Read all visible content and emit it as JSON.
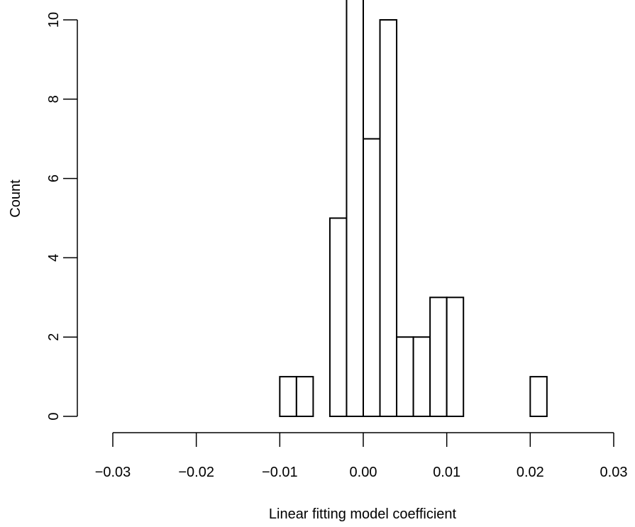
{
  "chart_data": {
    "type": "bar",
    "subtype": "histogram",
    "title": "",
    "xlabel": "Linear fitting model coefficient",
    "ylabel": "Count",
    "xlim": [
      -0.03,
      0.03
    ],
    "ylim": [
      0,
      10
    ],
    "x_ticks": [
      -0.03,
      -0.02,
      -0.01,
      0.0,
      0.01,
      0.02,
      0.03
    ],
    "x_tick_labels": [
      "−0.03",
      "−0.02",
      "−0.01",
      "0.00",
      "0.01",
      "0.02",
      "0.03"
    ],
    "y_ticks": [
      0,
      2,
      4,
      6,
      8,
      10
    ],
    "y_tick_labels": [
      "0",
      "2",
      "4",
      "6",
      "8",
      "10"
    ],
    "bin_width": 0.002,
    "bins": [
      {
        "x0": -0.032,
        "x1": -0.03,
        "count": 0
      },
      {
        "x0": -0.03,
        "x1": -0.028,
        "count": 0
      },
      {
        "x0": -0.028,
        "x1": -0.026,
        "count": 0
      },
      {
        "x0": -0.026,
        "x1": -0.024,
        "count": 0
      },
      {
        "x0": -0.024,
        "x1": -0.022,
        "count": 0
      },
      {
        "x0": -0.022,
        "x1": -0.02,
        "count": 0
      },
      {
        "x0": -0.02,
        "x1": -0.018,
        "count": 0
      },
      {
        "x0": -0.018,
        "x1": -0.016,
        "count": 0
      },
      {
        "x0": -0.016,
        "x1": -0.014,
        "count": 0
      },
      {
        "x0": -0.014,
        "x1": -0.012,
        "count": 0
      },
      {
        "x0": -0.012,
        "x1": -0.01,
        "count": 0
      },
      {
        "x0": -0.01,
        "x1": -0.008,
        "count": 1
      },
      {
        "x0": -0.008,
        "x1": -0.006,
        "count": 1
      },
      {
        "x0": -0.006,
        "x1": -0.004,
        "count": 0
      },
      {
        "x0": -0.004,
        "x1": -0.002,
        "count": 5
      },
      {
        "x0": -0.002,
        "x1": 0.0,
        "count": 11
      },
      {
        "x0": 0.0,
        "x1": 0.002,
        "count": 7
      },
      {
        "x0": 0.002,
        "x1": 0.004,
        "count": 10
      },
      {
        "x0": 0.004,
        "x1": 0.006,
        "count": 2
      },
      {
        "x0": 0.006,
        "x1": 0.008,
        "count": 2
      },
      {
        "x0": 0.008,
        "x1": 0.01,
        "count": 3
      },
      {
        "x0": 0.01,
        "x1": 0.012,
        "count": 3
      },
      {
        "x0": 0.012,
        "x1": 0.014,
        "count": 0
      },
      {
        "x0": 0.014,
        "x1": 0.016,
        "count": 0
      },
      {
        "x0": 0.016,
        "x1": 0.018,
        "count": 0
      },
      {
        "x0": 0.018,
        "x1": 0.02,
        "count": 0
      },
      {
        "x0": 0.02,
        "x1": 0.022,
        "count": 1
      },
      {
        "x0": 0.022,
        "x1": 0.024,
        "count": 0
      },
      {
        "x0": 0.024,
        "x1": 0.026,
        "count": 0
      },
      {
        "x0": 0.026,
        "x1": 0.028,
        "count": 0
      },
      {
        "x0": 0.028,
        "x1": 0.03,
        "count": 0
      },
      {
        "x0": 0.03,
        "x1": 0.032,
        "count": 0
      }
    ],
    "grid": false,
    "bar_fill": "#ffffff",
    "bar_stroke": "#000000"
  }
}
